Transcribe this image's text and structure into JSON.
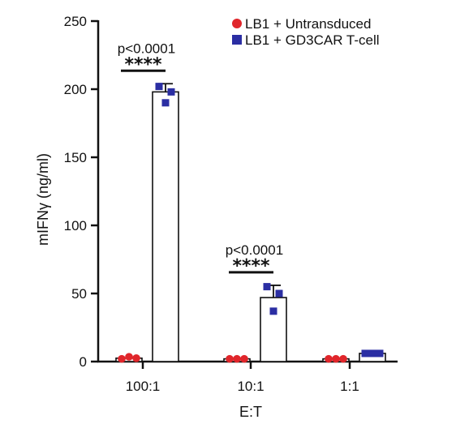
{
  "chart_data": {
    "type": "bar",
    "xlabel": "E:T",
    "ylabel": "mIFNγ (ng/ml)",
    "ylim": [
      0,
      250
    ],
    "yticks": [
      0,
      50,
      100,
      150,
      200,
      250
    ],
    "categories": [
      "100:1",
      "10:1",
      "1:1"
    ],
    "legend_position": "top-right",
    "series": [
      {
        "name": "LB1 + Untransduced",
        "color": "#e0262b",
        "marker": "circle",
        "values": [
          2.5,
          2,
          2
        ],
        "error": [
          0,
          0,
          0
        ],
        "points": [
          [
            2,
            3.5,
            2.5
          ],
          [
            2,
            2,
            2
          ],
          [
            2,
            2,
            2
          ]
        ]
      },
      {
        "name": "LB1 + GD3CAR T-cell",
        "color": "#2b2ea3",
        "marker": "square",
        "values": [
          198,
          47,
          6
        ],
        "error": [
          6,
          9,
          1
        ],
        "points": [
          [
            202,
            198,
            190
          ],
          [
            55,
            50,
            37
          ],
          [
            6,
            6,
            6
          ]
        ]
      }
    ],
    "annotations": [
      {
        "category": "100:1",
        "pvalue": "p<0.0001",
        "stars": "****"
      },
      {
        "category": "10:1",
        "pvalue": "p<0.0001",
        "stars": "****"
      }
    ]
  }
}
